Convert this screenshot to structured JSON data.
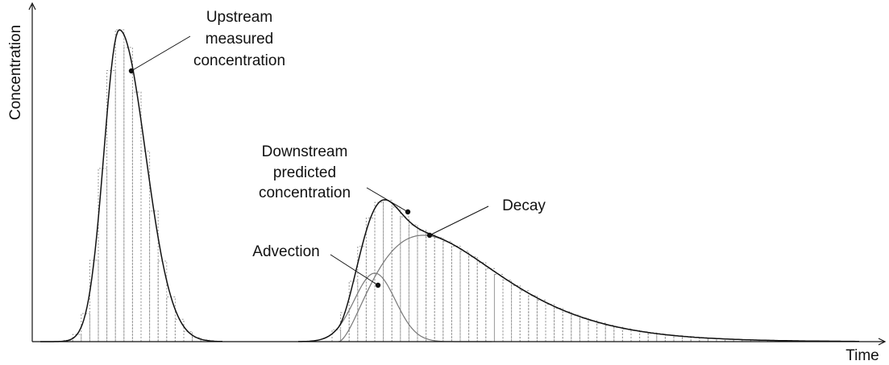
{
  "axes": {
    "y_label": "Concentration",
    "x_label": "Time"
  },
  "annotations": {
    "upstream": {
      "lines": [
        "Upstream",
        "measured",
        "concentration"
      ]
    },
    "downstream": {
      "lines": [
        "Downstream",
        "predicted",
        "concentration"
      ]
    },
    "advection": {
      "lines": [
        "Advection"
      ]
    },
    "decay": {
      "lines": [
        "Decay"
      ]
    }
  }
}
